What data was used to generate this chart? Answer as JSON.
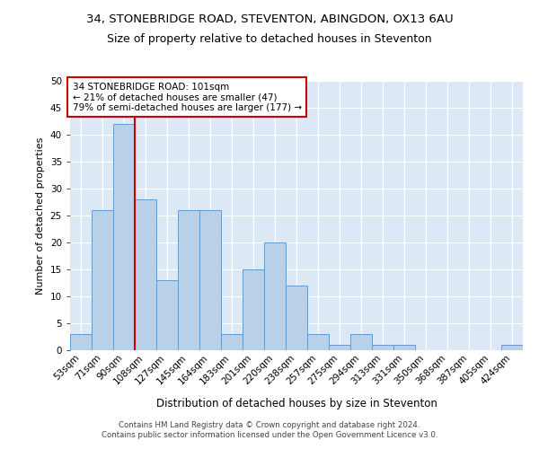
{
  "title": "34, STONEBRIDGE ROAD, STEVENTON, ABINGDON, OX13 6AU",
  "subtitle": "Size of property relative to detached houses in Steventon",
  "xlabel": "Distribution of detached houses by size in Steventon",
  "ylabel": "Number of detached properties",
  "categories": [
    "53sqm",
    "71sqm",
    "90sqm",
    "108sqm",
    "127sqm",
    "145sqm",
    "164sqm",
    "183sqm",
    "201sqm",
    "220sqm",
    "238sqm",
    "257sqm",
    "275sqm",
    "294sqm",
    "313sqm",
    "331sqm",
    "350sqm",
    "368sqm",
    "387sqm",
    "405sqm",
    "424sqm"
  ],
  "values": [
    3,
    26,
    42,
    28,
    13,
    26,
    26,
    3,
    15,
    20,
    12,
    3,
    1,
    3,
    1,
    1,
    0,
    0,
    0,
    0,
    1
  ],
  "bar_color": "#b8d0e8",
  "bar_edge_color": "#6699cc",
  "vline_x_index": 2,
  "vline_color": "#cc0000",
  "annotation_line1": "34 STONEBRIDGE ROAD: 101sqm",
  "annotation_line2": "← 21% of detached houses are smaller (47)",
  "annotation_line3": "79% of semi-detached houses are larger (177) →",
  "annotation_box_color": "#ffffff",
  "annotation_box_edge": "#cc0000",
  "ylim": [
    0,
    50
  ],
  "yticks": [
    0,
    5,
    10,
    15,
    20,
    25,
    30,
    35,
    40,
    45,
    50
  ],
  "background_color": "#dce8f5",
  "grid_color": "#ffffff",
  "title_fontsize": 9.5,
  "subtitle_fontsize": 9,
  "ylabel_fontsize": 8,
  "xlabel_fontsize": 8.5,
  "tick_fontsize": 7.5,
  "footer1": "Contains HM Land Registry data © Crown copyright and database right 2024.",
  "footer2": "Contains public sector information licensed under the Open Government Licence v3.0."
}
